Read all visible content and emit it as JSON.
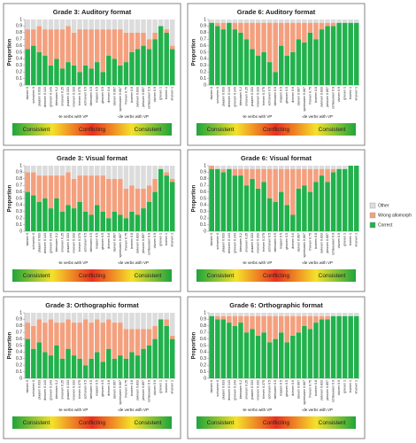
{
  "chart_data": [
    {
      "type": "bar",
      "stacked": true,
      "title": "Grade 3: Auditory format",
      "y_label": "Proportion",
      "categories": [
        "bluisen 0",
        "schroeien 0",
        "plaaien 0.033",
        "dreuven 0.143",
        "gnieven 0.143",
        "kleeuwen 0.2",
        "sneuven 0.25",
        "praaien 0.333",
        "vroeven 0.333",
        "trieven 0.375",
        "schruiven 0.5",
        "bleeuwen 0.5",
        "kraaien 0.5",
        "gleuven 0.5",
        "drieven 0.6",
        "sluiven 0.667",
        "spreeuwen 0.667",
        "fnieven 0.75",
        "broeien 0.8",
        "zwieven 0.833",
        "pleuven 0.857",
        "schleeuwen 0.9",
        "vluiven 0.9",
        "grieven 1",
        "troeien 1",
        "knuiven 1"
      ],
      "series": [
        {
          "name": "Correct",
          "color": "#22b14c",
          "values": [
            0.55,
            0.6,
            0.5,
            0.45,
            0.3,
            0.4,
            0.25,
            0.35,
            0.3,
            0.2,
            0.3,
            0.25,
            0.35,
            0.2,
            0.45,
            0.4,
            0.3,
            0.35,
            0.5,
            0.55,
            0.6,
            0.55,
            0.7,
            0.9,
            0.8,
            0.55
          ]
        },
        {
          "name": "Wrong allomorph",
          "color": "#f4a07e",
          "values": [
            0.3,
            0.25,
            0.4,
            0.4,
            0.55,
            0.45,
            0.6,
            0.55,
            0.5,
            0.65,
            0.55,
            0.6,
            0.5,
            0.65,
            0.4,
            0.45,
            0.55,
            0.45,
            0.3,
            0.25,
            0.2,
            0.15,
            0.1,
            0,
            0.05,
            0.05
          ]
        },
        {
          "name": "Other",
          "color": "#dcdcdc",
          "values": [
            0.15,
            0.15,
            0.1,
            0.15,
            0.15,
            0.15,
            0.15,
            0.1,
            0.2,
            0.15,
            0.15,
            0.15,
            0.15,
            0.15,
            0.15,
            0.15,
            0.15,
            0.2,
            0.2,
            0.2,
            0.2,
            0.3,
            0.2,
            0.1,
            0.15,
            0.4
          ]
        }
      ],
      "ylim": [
        0,
        1
      ],
      "yticks": [
        0,
        0.1,
        0.2,
        0.3,
        0.4,
        0.5,
        0.6,
        0.7,
        0.8,
        0.9,
        1
      ],
      "annotations": [
        "-te verbs with VP",
        "-de verbs with VP"
      ],
      "scale_labels": [
        "Consistent",
        "Conflicting",
        "Consistent"
      ]
    },
    {
      "type": "bar",
      "stacked": true,
      "title": "Grade 6: Auditory format",
      "y_label": "Proportion",
      "categories": [
        "bluisen 0",
        "schroeien 0",
        "plaaien 0.033",
        "dreuven 0.143",
        "gnieven 0.143",
        "kleeuwen 0.2",
        "sneuven 0.25",
        "praaien 0.333",
        "vroeven 0.333",
        "trieven 0.375",
        "schruiven 0.5",
        "bleeuwen 0.5",
        "kraaien 0.5",
        "gleuven 0.5",
        "drieven 0.6",
        "sluiven 0.667",
        "spreeuwen 0.667",
        "fnieven 0.75",
        "broeien 0.8",
        "zwieven 0.833",
        "pleuven 0.857",
        "schleeuwen 0.9",
        "vluiven 0.9",
        "grieven 1",
        "troeien 1",
        "knuiven 1"
      ],
      "series": [
        {
          "name": "Correct",
          "color": "#22b14c",
          "values": [
            0.95,
            0.9,
            0.85,
            0.95,
            0.85,
            0.8,
            0.7,
            0.55,
            0.45,
            0.5,
            0.35,
            0.2,
            0.6,
            0.45,
            0.5,
            0.7,
            0.65,
            0.8,
            0.7,
            0.85,
            0.9,
            0.9,
            0.95,
            0.95,
            0.95,
            0.95
          ]
        },
        {
          "name": "Wrong allomorph",
          "color": "#f4a07e",
          "values": [
            0,
            0.05,
            0.1,
            0,
            0.1,
            0.15,
            0.25,
            0.4,
            0.5,
            0.45,
            0.6,
            0.75,
            0.35,
            0.5,
            0.45,
            0.25,
            0.3,
            0.15,
            0.25,
            0.1,
            0.05,
            0.05,
            0,
            0,
            0,
            0
          ]
        },
        {
          "name": "Other",
          "color": "#dcdcdc",
          "values": [
            0.05,
            0.05,
            0.05,
            0.05,
            0.05,
            0.05,
            0.05,
            0.05,
            0.05,
            0.05,
            0.05,
            0.05,
            0.05,
            0.05,
            0.05,
            0.05,
            0.05,
            0.05,
            0.05,
            0.05,
            0.05,
            0.05,
            0.05,
            0.05,
            0.05,
            0.05
          ]
        }
      ],
      "ylim": [
        0,
        1
      ],
      "yticks": [
        0,
        0.1,
        0.2,
        0.3,
        0.4,
        0.5,
        0.6,
        0.7,
        0.8,
        0.9,
        1
      ],
      "annotations": [
        "-te verbs with VP",
        "-de verbs with VP"
      ],
      "scale_labels": [
        "Consistent",
        "Conflicting",
        "Consistent"
      ]
    },
    {
      "type": "bar",
      "stacked": true,
      "title": "Grade 3: Visual format",
      "y_label": "Proportion",
      "categories": [
        "bluisen 0",
        "schroeien 0",
        "plaaien 0.033",
        "dreuven 0.143",
        "gnieven 0.143",
        "kleeuwen 0.2",
        "sneuven 0.25",
        "praaien 0.333",
        "vroeven 0.333",
        "trieven 0.375",
        "schruiven 0.5",
        "bleeuwen 0.5",
        "kraaien 0.5",
        "gleuven 0.5",
        "drieven 0.6",
        "sluiven 0.667",
        "spreeuwen 0.667",
        "fnieven 0.75",
        "broeien 0.8",
        "zwieven 0.833",
        "pleuven 0.857",
        "schleeuwen 0.9",
        "vluiven 0.9",
        "grieven 1",
        "troeien 1",
        "knuiven 1"
      ],
      "series": [
        {
          "name": "Correct",
          "color": "#22b14c",
          "values": [
            0.6,
            0.55,
            0.45,
            0.5,
            0.35,
            0.5,
            0.3,
            0.4,
            0.35,
            0.45,
            0.3,
            0.25,
            0.4,
            0.3,
            0.2,
            0.3,
            0.25,
            0.2,
            0.3,
            0.25,
            0.35,
            0.45,
            0.6,
            0.95,
            0.85,
            0.75
          ]
        },
        {
          "name": "Wrong allomorph",
          "color": "#f4a07e",
          "values": [
            0.3,
            0.35,
            0.4,
            0.35,
            0.5,
            0.35,
            0.55,
            0.5,
            0.45,
            0.4,
            0.55,
            0.6,
            0.45,
            0.55,
            0.6,
            0.5,
            0.55,
            0.45,
            0.4,
            0.4,
            0.3,
            0.25,
            0.2,
            0,
            0.05,
            0.05
          ]
        },
        {
          "name": "Other",
          "color": "#dcdcdc",
          "values": [
            0.1,
            0.1,
            0.15,
            0.15,
            0.15,
            0.15,
            0.15,
            0.1,
            0.2,
            0.15,
            0.15,
            0.15,
            0.15,
            0.15,
            0.2,
            0.2,
            0.2,
            0.35,
            0.3,
            0.35,
            0.35,
            0.3,
            0.2,
            0.05,
            0.1,
            0.2
          ]
        }
      ],
      "ylim": [
        0,
        1
      ],
      "yticks": [
        0,
        0.1,
        0.2,
        0.3,
        0.4,
        0.5,
        0.6,
        0.7,
        0.8,
        0.9,
        1
      ],
      "annotations": [
        "-te verbs with VP",
        "-de verbs with VP"
      ],
      "scale_labels": [
        "Consistent",
        "Conflicting",
        "Consistent"
      ]
    },
    {
      "type": "bar",
      "stacked": true,
      "title": "Grade 6: Visual format",
      "y_label": "Proportion",
      "categories": [
        "bluisen 0",
        "schroeien 0",
        "plaaien 0.033",
        "dreuven 0.143",
        "gnieven 0.143",
        "kleeuwen 0.2",
        "sneuven 0.25",
        "praaien 0.333",
        "vroeven 0.333",
        "trieven 0.375",
        "schruiven 0.5",
        "bleeuwen 0.5",
        "kraaien 0.5",
        "gleuven 0.5",
        "drieven 0.6",
        "sluiven 0.667",
        "spreeuwen 0.667",
        "fnieven 0.75",
        "broeien 0.8",
        "zwieven 0.833",
        "pleuven 0.857",
        "schleeuwen 0.9",
        "vluiven 0.9",
        "grieven 1",
        "troeien 1",
        "knuiven 1"
      ],
      "series": [
        {
          "name": "Correct",
          "color": "#22b14c",
          "values": [
            0.95,
            0.95,
            0.9,
            0.95,
            0.85,
            0.85,
            0.7,
            0.8,
            0.65,
            0.75,
            0.5,
            0.45,
            0.6,
            0.4,
            0.25,
            0.65,
            0.7,
            0.6,
            0.75,
            0.85,
            0.75,
            0.9,
            0.95,
            0.95,
            1,
            1
          ]
        },
        {
          "name": "Wrong allomorph",
          "color": "#f4a07e",
          "values": [
            0.05,
            0,
            0.05,
            0,
            0.1,
            0.1,
            0.25,
            0.15,
            0.3,
            0.2,
            0.45,
            0.5,
            0.35,
            0.55,
            0.7,
            0.3,
            0.25,
            0.35,
            0.2,
            0.1,
            0.2,
            0.05,
            0,
            0,
            0,
            0
          ]
        },
        {
          "name": "Other",
          "color": "#dcdcdc",
          "values": [
            0,
            0.05,
            0.05,
            0.05,
            0.05,
            0.05,
            0.05,
            0.05,
            0.05,
            0.05,
            0.05,
            0.05,
            0.05,
            0.05,
            0.05,
            0.05,
            0.05,
            0.05,
            0.05,
            0.05,
            0.05,
            0.05,
            0.05,
            0.05,
            0,
            0
          ]
        }
      ],
      "ylim": [
        0,
        1
      ],
      "yticks": [
        0,
        0.1,
        0.2,
        0.3,
        0.4,
        0.5,
        0.6,
        0.7,
        0.8,
        0.9,
        1
      ],
      "annotations": [
        "-te verbs with VP",
        "-de verbs with VP"
      ],
      "scale_labels": [
        "Consistent",
        "Conflicting",
        "Consistent"
      ]
    },
    {
      "type": "bar",
      "stacked": true,
      "title": "Grade 3: Orthographic format",
      "y_label": "Proportion",
      "categories": [
        "bluisen 0",
        "schroeien 0",
        "plaaien 0.033",
        "dreuven 0.143",
        "gnieven 0.143",
        "kleeuwen 0.2",
        "sneuven 0.25",
        "praaien 0.333",
        "vroeven 0.333",
        "trieven 0.375",
        "schruiven 0.5",
        "bleeuwen 0.5",
        "kraaien 0.5",
        "gleuven 0.5",
        "drieven 0.6",
        "sluiven 0.667",
        "spreeuwen 0.667",
        "fnieven 0.75",
        "broeien 0.8",
        "zwieven 0.833",
        "pleuven 0.857",
        "schleeuwen 0.9",
        "vluiven 0.9",
        "grieven 1",
        "troeien 1",
        "knuiven 1"
      ],
      "series": [
        {
          "name": "Correct",
          "color": "#22b14c",
          "values": [
            0.6,
            0.45,
            0.55,
            0.4,
            0.35,
            0.5,
            0.3,
            0.45,
            0.35,
            0.3,
            0.2,
            0.3,
            0.4,
            0.25,
            0.45,
            0.3,
            0.35,
            0.3,
            0.4,
            0.35,
            0.45,
            0.5,
            0.6,
            0.9,
            0.8,
            0.6
          ]
        },
        {
          "name": "Wrong allomorph",
          "color": "#f4a07e",
          "values": [
            0.25,
            0.35,
            0.35,
            0.45,
            0.55,
            0.35,
            0.55,
            0.45,
            0.5,
            0.55,
            0.7,
            0.55,
            0.5,
            0.6,
            0.45,
            0.55,
            0.5,
            0.45,
            0.35,
            0.4,
            0.3,
            0.25,
            0.2,
            0,
            0.1,
            0.05
          ]
        },
        {
          "name": "Other",
          "color": "#dcdcdc",
          "values": [
            0.15,
            0.2,
            0.1,
            0.15,
            0.1,
            0.15,
            0.15,
            0.1,
            0.15,
            0.15,
            0.1,
            0.15,
            0.1,
            0.15,
            0.1,
            0.15,
            0.15,
            0.25,
            0.25,
            0.25,
            0.25,
            0.25,
            0.2,
            0.1,
            0.1,
            0.35
          ]
        }
      ],
      "ylim": [
        0,
        1
      ],
      "yticks": [
        0,
        0.1,
        0.2,
        0.3,
        0.4,
        0.5,
        0.6,
        0.7,
        0.8,
        0.9,
        1
      ],
      "annotations": [
        "-te verbs with VP",
        "-de verbs with VP"
      ],
      "scale_labels": [
        "Consistent",
        "Conflicting",
        "Consistent"
      ]
    },
    {
      "type": "bar",
      "stacked": true,
      "title": "Grade 6: Orthographic format",
      "y_label": "Proportion",
      "categories": [
        "bluisen 0",
        "schroeien 0",
        "plaaien 0.033",
        "dreuven 0.143",
        "gnieven 0.143",
        "kleeuwen 0.2",
        "sneuven 0.25",
        "praaien 0.333",
        "vroeven 0.333",
        "trieven 0.375",
        "schruiven 0.5",
        "bleeuwen 0.5",
        "kraaien 0.5",
        "gleuven 0.5",
        "drieven 0.6",
        "sluiven 0.667",
        "spreeuwen 0.667",
        "fnieven 0.75",
        "broeien 0.8",
        "zwieven 0.833",
        "pleuven 0.857",
        "schleeuwen 0.9",
        "vluiven 0.9",
        "grieven 1",
        "troeien 1",
        "knuiven 1"
      ],
      "series": [
        {
          "name": "Correct",
          "color": "#22b14c",
          "values": [
            0.95,
            0.9,
            0.9,
            0.85,
            0.8,
            0.85,
            0.7,
            0.75,
            0.65,
            0.7,
            0.55,
            0.6,
            0.7,
            0.55,
            0.65,
            0.7,
            0.8,
            0.75,
            0.85,
            0.9,
            0.9,
            0.95,
            0.95,
            0.95,
            0.95,
            0.95
          ]
        },
        {
          "name": "Wrong allomorph",
          "color": "#f4a07e",
          "values": [
            0,
            0.05,
            0.05,
            0.1,
            0.15,
            0.1,
            0.25,
            0.2,
            0.3,
            0.25,
            0.4,
            0.35,
            0.25,
            0.4,
            0.3,
            0.25,
            0.15,
            0.2,
            0.1,
            0.05,
            0.05,
            0,
            0,
            0,
            0,
            0
          ]
        },
        {
          "name": "Other",
          "color": "#dcdcdc",
          "values": [
            0.05,
            0.05,
            0.05,
            0.05,
            0.05,
            0.05,
            0.05,
            0.05,
            0.05,
            0.05,
            0.05,
            0.05,
            0.05,
            0.05,
            0.05,
            0.05,
            0.05,
            0.05,
            0.05,
            0.05,
            0.05,
            0.05,
            0.05,
            0.05,
            0.05,
            0.05
          ]
        }
      ],
      "ylim": [
        0,
        1
      ],
      "yticks": [
        0,
        0.1,
        0.2,
        0.3,
        0.4,
        0.5,
        0.6,
        0.7,
        0.8,
        0.9,
        1
      ],
      "annotations": [
        "-te verbs with VP",
        "-de verbs with VP"
      ],
      "scale_labels": [
        "Consistent",
        "Conflicting",
        "Consistent"
      ]
    }
  ]
}
